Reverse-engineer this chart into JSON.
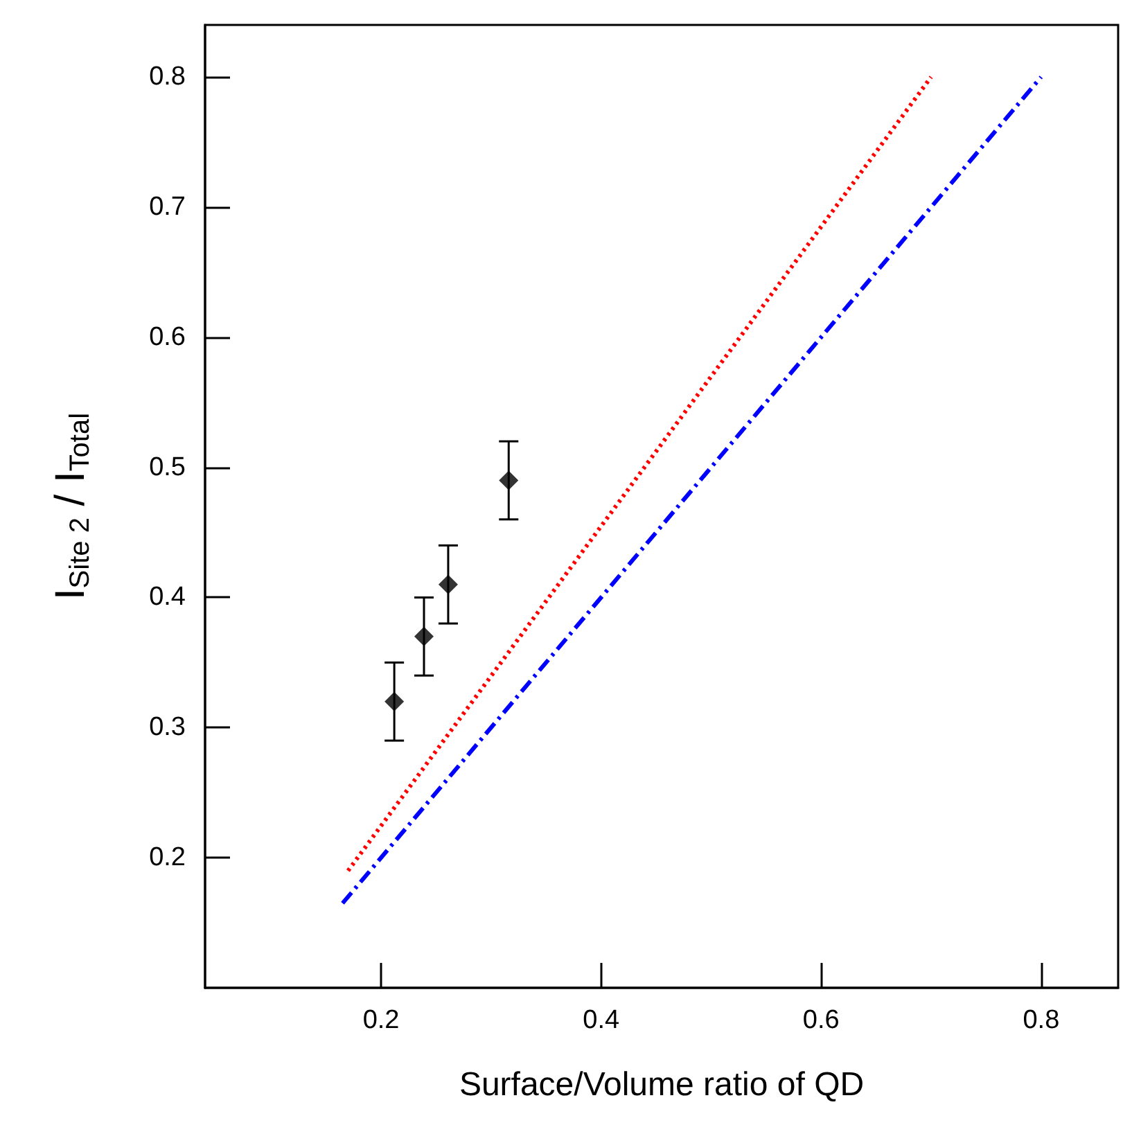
{
  "chart_data": {
    "type": "scatter",
    "xlabel": "Surface/Volume ratio of QD",
    "ylabel": "I$_{Site 2}$ / I$_{Total}$",
    "xlim": [
      0.04,
      0.87
    ],
    "ylim": [
      0.1,
      0.84
    ],
    "xticks": [
      0.2,
      0.4,
      0.6,
      0.8
    ],
    "yticks": [
      0.2,
      0.3,
      0.4,
      0.5,
      0.6,
      0.7,
      0.8
    ],
    "series": [
      {
        "color": "#000000",
        "marker": "diamond",
        "x": [
          0.212,
          0.239,
          0.261,
          0.316
        ],
        "values": [
          0.32,
          0.37,
          0.41,
          0.49
        ],
        "errors": [
          0.03,
          0.03,
          0.03,
          0.03
        ]
      },
      {
        "type": "line",
        "color": "#ff0000",
        "line_style": "dotted",
        "marker": "none",
        "x": [
          0.17,
          0.7
        ],
        "values": [
          0.19,
          0.8
        ]
      },
      {
        "type": "line",
        "color": "#0000ff",
        "line_style": "dashed",
        "marker": "none",
        "x": [
          0.165,
          0.8
        ],
        "values": [
          0.165,
          0.8
        ]
      }
    ]
  }
}
